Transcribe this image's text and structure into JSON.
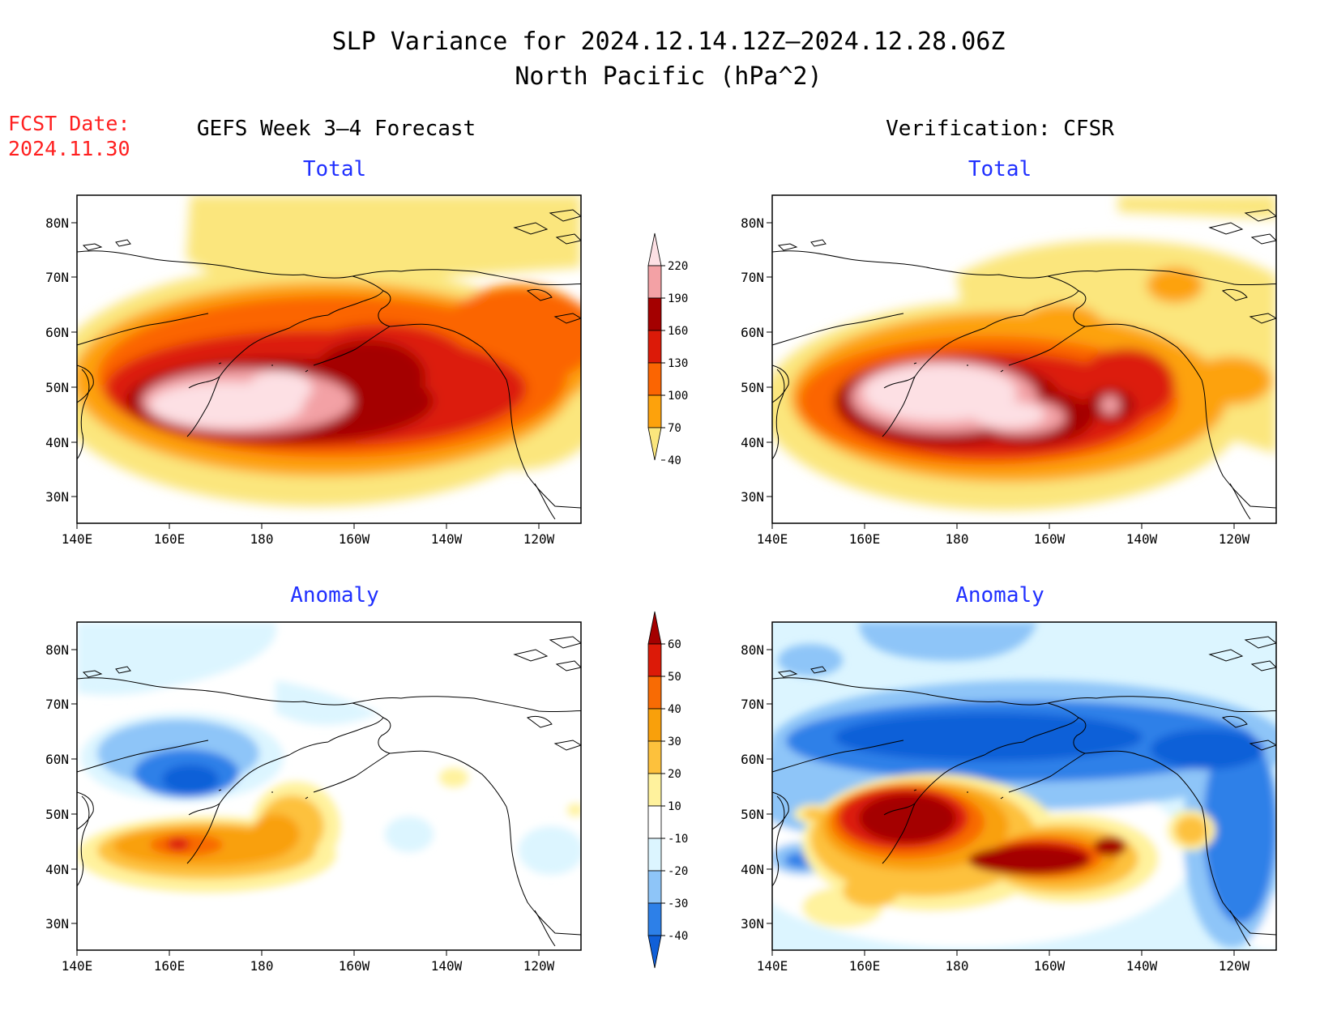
{
  "title": {
    "line1": "SLP Variance for 2024.12.14.12Z—2024.12.28.06Z",
    "line2": "North Pacific (hPa^2)"
  },
  "fcst_date": {
    "label": "FCST Date:",
    "value": "2024.11.30"
  },
  "columns": {
    "left": "GEFS Week 3—4 Forecast",
    "right": "Verification: CFSR"
  },
  "panel_titles": {
    "total": "Total",
    "anomaly": "Anomaly"
  },
  "axes": {
    "lat_labels": [
      "30N",
      "40N",
      "50N",
      "60N",
      "70N",
      "80N"
    ],
    "lon_labels": [
      "140E",
      "160E",
      "180",
      "160W",
      "140W",
      "120W"
    ]
  },
  "colorbars": {
    "total": {
      "labels": [
        "40",
        "70",
        "100",
        "130",
        "160",
        "190",
        "220"
      ],
      "colors": [
        "#fbe67d",
        "#fda20c",
        "#fb6502",
        "#dc1a08",
        "#a40000",
        "#f3a1a5",
        "#fde0e4"
      ]
    },
    "anomaly": {
      "labels": [
        "-40",
        "-30",
        "-20",
        "-10",
        "10",
        "20",
        "30",
        "40",
        "50",
        "60"
      ],
      "colors": [
        "#1160d8",
        "#2d80e8",
        "#8ec5f8",
        "#dcf5ff",
        "#ffffff",
        "#fff29d",
        "#fdc13c",
        "#f9a00b",
        "#f86b04",
        "#dc1a08",
        "#a40000"
      ]
    }
  },
  "colors": {
    "title": "#000000",
    "fcst": "#ff2020",
    "panel_title": "#2030ff"
  }
}
